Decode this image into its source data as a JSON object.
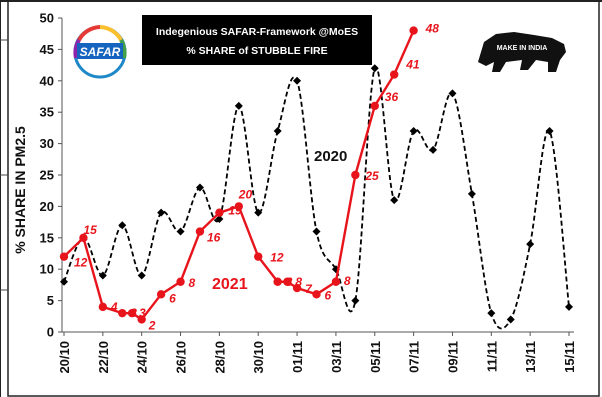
{
  "chart_data": {
    "type": "line",
    "title": "Indegenious SAFAR-Framework @MoES",
    "subtitle": "% SHARE of STUBBLE FIRE",
    "logo_text": "SAFAR",
    "watermark_text": "MAKE IN INDIA",
    "ylabel": "% SHARE IN PM2.5",
    "xlabel": "",
    "ylim": [
      0,
      50
    ],
    "y_ticks": [
      0,
      5,
      10,
      15,
      20,
      25,
      30,
      35,
      40,
      45,
      50
    ],
    "x_index_range": [
      0,
      26
    ],
    "x_tick_labels": [
      {
        "i": 0,
        "label": "20/10"
      },
      {
        "i": 2,
        "label": "22/10"
      },
      {
        "i": 4,
        "label": "24/10"
      },
      {
        "i": 6,
        "label": "26/10"
      },
      {
        "i": 8,
        "label": "28/10"
      },
      {
        "i": 10,
        "label": "30/10"
      },
      {
        "i": 12,
        "label": "01/11"
      },
      {
        "i": 14,
        "label": "03/11"
      },
      {
        "i": 16,
        "label": "05/11"
      },
      {
        "i": 18,
        "label": "07/11"
      },
      {
        "i": 20,
        "label": "09/11"
      },
      {
        "i": 22,
        "label": "11/11"
      },
      {
        "i": 24,
        "label": "13/11"
      },
      {
        "i": 26,
        "label": "15/11"
      }
    ],
    "grid": false,
    "legend": "inline labels",
    "series": [
      {
        "name": "2020",
        "color": "#000000",
        "style": "dashed-smooth",
        "x": [
          0,
          1,
          2,
          3,
          4,
          5,
          6,
          7,
          8,
          9,
          10,
          11,
          12,
          13,
          14,
          15,
          16,
          17,
          18,
          19,
          20,
          21,
          22,
          23,
          24,
          25,
          26
        ],
        "values": [
          8,
          15,
          9,
          17,
          9,
          19,
          16,
          23,
          18,
          36,
          19,
          32,
          40,
          16,
          10,
          5,
          42,
          21,
          32,
          29,
          38,
          22,
          3,
          2,
          14,
          32,
          4
        ]
      },
      {
        "name": "2021",
        "color": "#e8141c",
        "style": "solid",
        "x": [
          0,
          1,
          2,
          3,
          3.5,
          4,
          5,
          6,
          7,
          8,
          9,
          10,
          11,
          11.5,
          12,
          13,
          14,
          15,
          16,
          17,
          18
        ],
        "values": [
          12,
          15,
          4,
          3,
          3,
          2,
          6,
          8,
          16,
          19,
          20,
          12,
          8,
          8,
          7,
          6,
          8,
          25,
          36,
          41,
          48
        ],
        "labels": [
          "12",
          "15",
          "4",
          "3",
          "3",
          "2",
          "6",
          "8",
          "16",
          "19",
          "20",
          "12",
          "8",
          "8",
          "7",
          "6",
          "8",
          "25",
          "36",
          "41",
          "48"
        ]
      }
    ]
  }
}
